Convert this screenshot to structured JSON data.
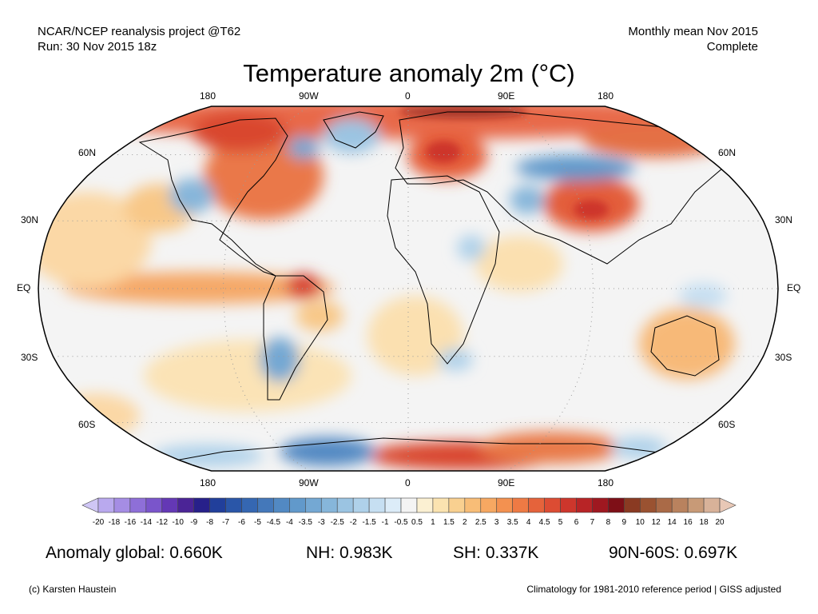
{
  "header": {
    "source_line1": "NCAR/NCEP reanalysis project @T62",
    "source_line2": "Run: 30 Nov 2015 18z",
    "period_line1": "Monthly mean Nov 2015",
    "period_line2": "Complete"
  },
  "title": "Temperature anomaly 2m (°C)",
  "map": {
    "projection": "robinson",
    "longitude_labels_top": [
      "180",
      "90W",
      "0",
      "90E",
      "180"
    ],
    "longitude_labels_bottom": [
      "180",
      "90W",
      "0",
      "90E",
      "180"
    ],
    "latitude_labels_left": [
      "60N",
      "30N",
      "EQ",
      "30S",
      "60S"
    ],
    "latitude_labels_right": [
      "60N",
      "30N",
      "EQ",
      "30S",
      "60S"
    ],
    "gridlines": "dotted"
  },
  "colorbar": {
    "ticks": [
      "-20",
      "-18",
      "-16",
      "-14",
      "-12",
      "-10",
      "-9",
      "-8",
      "-7",
      "-6",
      "-5",
      "-4.5",
      "-4",
      "-3.5",
      "-3",
      "-2.5",
      "-2",
      "-1.5",
      "-1",
      "-0.5",
      "0.5",
      "1",
      "1.5",
      "2",
      "2.5",
      "3",
      "3.5",
      "4",
      "4.5",
      "5",
      "6",
      "7",
      "8",
      "9",
      "10",
      "12",
      "14",
      "16",
      "18",
      "20"
    ],
    "colors": [
      "#cfc6f5",
      "#b9a9ee",
      "#a58de4",
      "#8e6fd8",
      "#7a55cb",
      "#6438b5",
      "#4b2496",
      "#27208a",
      "#213f9b",
      "#2a56a8",
      "#3567b2",
      "#4478ba",
      "#5289c3",
      "#6199cb",
      "#74a8d3",
      "#86b6da",
      "#9bc4e2",
      "#afd1ea",
      "#c6dff2",
      "#dcecf8",
      "#f4f4f4",
      "#fbf0d2",
      "#fbe3b0",
      "#f9d090",
      "#f8bd77",
      "#f6a862",
      "#f39150",
      "#ee7a44",
      "#e5633b",
      "#dc4c33",
      "#cd362c",
      "#b82426",
      "#9f1820",
      "#7e0f17",
      "#8a3a22",
      "#9a5231",
      "#aa6a47",
      "#b9825e",
      "#c89a77",
      "#d8b299",
      "#e8c8b6"
    ]
  },
  "stats": {
    "global": "Anomaly global: 0.660K",
    "nh": "NH: 0.983K",
    "sh": "SH: 0.337K",
    "arctic": "90N-60S: 0.697K"
  },
  "footer": {
    "copyright": "(c) Karsten Haustein",
    "note": "Climatology for 1981-2010 reference period | GISS adjusted"
  }
}
